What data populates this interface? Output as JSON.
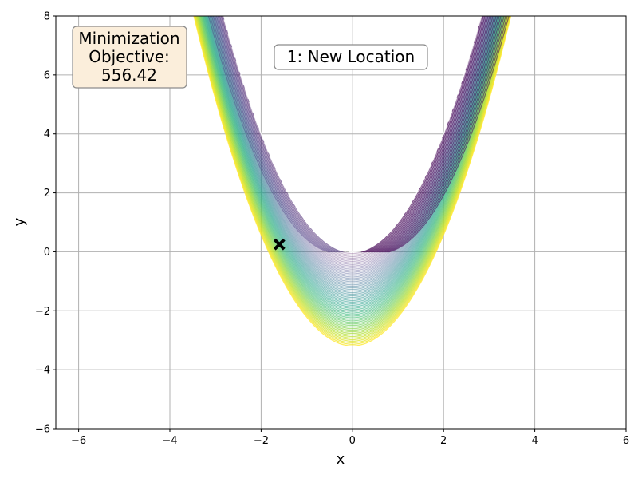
{
  "chart_data": {
    "type": "contour",
    "xlabel": "x",
    "ylabel": "y",
    "xlim": [
      -6.5,
      6
    ],
    "ylim": [
      -6,
      8
    ],
    "x_ticks": [
      -6,
      -4,
      -2,
      0,
      2,
      4,
      6
    ],
    "y_ticks": [
      -6,
      -4,
      -2,
      0,
      2,
      4,
      6,
      8
    ],
    "x_tick_labels": [
      "−6",
      "−4",
      "−2",
      "0",
      "2",
      "4",
      "6"
    ],
    "y_tick_labels": [
      "−6",
      "−4",
      "−2",
      "0",
      "2",
      "4",
      "6",
      "8"
    ],
    "grid": true,
    "function": "rosenbrock-like: (1-x)^2 + 100(y - x^2)^2 style valley, y ≈ x^2",
    "contour_colormap": "viridis",
    "valley_curve": "y = x^2",
    "marker": {
      "x": -1.6,
      "y": 0.25,
      "symbol": "x",
      "color": "#000000"
    },
    "objective_box": {
      "lines": [
        "Minimization",
        "Objective:",
        "556.42"
      ],
      "facecolor": "#fbeedb",
      "edgecolor": "#8c8c8c"
    },
    "status_box": {
      "text": "1: New Location",
      "facecolor": "#ffffff",
      "edgecolor": "#8c8c8c"
    }
  }
}
